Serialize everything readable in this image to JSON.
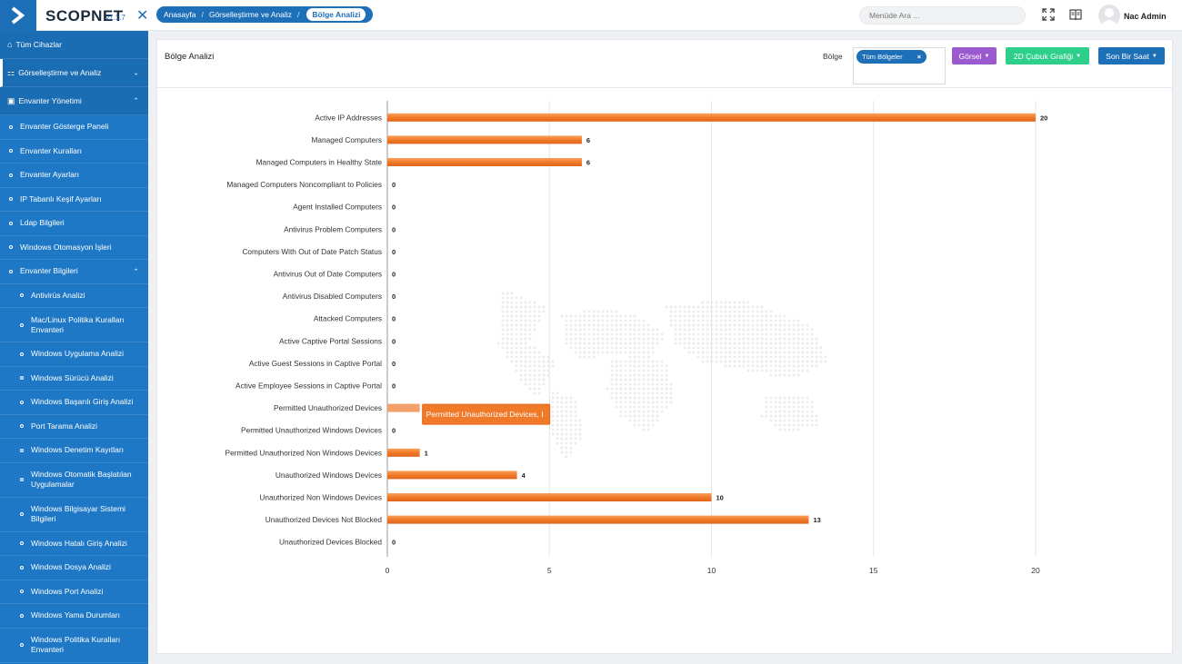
{
  "app": {
    "brand": "SCOPNET",
    "version": "v7.1.7"
  },
  "topbar": {
    "breadcrumb": [
      "Anasayfa",
      "Görselleştirme ve Analiz",
      "Bölge Analizi"
    ],
    "search_placeholder": "Menüde Ara ...",
    "user_name": "Nac Admin"
  },
  "sidebar": {
    "items": [
      {
        "label": "Tüm Cihazlar",
        "level": 0
      },
      {
        "label": "Görselleştirme ve Analiz",
        "level": 0
      },
      {
        "label": "Envanter Yönetimi",
        "level": 0
      },
      {
        "label": "Envanter Gösterge Paneli",
        "level": 1
      },
      {
        "label": "Envanter Kuralları",
        "level": 1
      },
      {
        "label": "Envanter Ayarları",
        "level": 1
      },
      {
        "label": "IP Tabanlı Keşif Ayarları",
        "level": 1
      },
      {
        "label": "Ldap Bilgileri",
        "level": 1
      },
      {
        "label": "Windows Otomasyon İşleri",
        "level": 1
      },
      {
        "label": "Envanter Bilgileri",
        "level": 1
      },
      {
        "label": "Antivirüs Analizi",
        "level": 2
      },
      {
        "label": "Mac/Linux Politika Kuralları Envanteri",
        "level": 2
      },
      {
        "label": "Windows Uygulama Analizi",
        "level": 2
      },
      {
        "label": "Windows Sürücü Analizi",
        "level": 2
      },
      {
        "label": "Windows Başarılı Giriş Analizi",
        "level": 2
      },
      {
        "label": "Port Tarama Analizi",
        "level": 2
      },
      {
        "label": "Windows Denetim Kayıtları",
        "level": 2
      },
      {
        "label": "Windows Otomatik Başlatılan Uygulamalar",
        "level": 2
      },
      {
        "label": "Windows Bilgisayar Sistemi Bilgileri",
        "level": 2
      },
      {
        "label": "Windows Hatalı Giriş Analizi",
        "level": 2
      },
      {
        "label": "Windows Dosya Analizi",
        "level": 2
      },
      {
        "label": "Windows Port Analizi",
        "level": 2
      },
      {
        "label": "Windows Yama Durumları",
        "level": 2
      },
      {
        "label": "Windows Politika Kuralları Envanteri",
        "level": 2
      }
    ]
  },
  "panel": {
    "title": "Bölge Analizi",
    "region_label": "Bölge",
    "region_tag": "Tüm Bölgeler",
    "buttons": {
      "visual": "Görsel",
      "chart_type": "2D Çubuk Grafiği",
      "time_range": "Son Bir Saat"
    }
  },
  "tooltip": {
    "text": "Permitted Unauthorized Devices, I"
  },
  "colors": {
    "bar": "#f07a2a",
    "bar_highlight": "#f4a06a",
    "sidebar": "#1e78c6",
    "accent": "#1d6fb8"
  },
  "chart_data": {
    "type": "bar",
    "orientation": "horizontal",
    "categories": [
      "Active IP Addresses",
      "Managed Computers",
      "Managed Computers in Healthy State",
      "Managed Computers Noncompliant to Policies",
      "Agent Installed Computers",
      "Antivirus Problem Computers",
      "Computers With Out of Date Patch Status",
      "Antivirus Out of Date Computers",
      "Antivirus Disabled Computers",
      "Attacked Computers",
      "Active Captive Portal Sessions",
      "Active Guest Sessions in Captive Portal",
      "Active Employee Sessions in Captive Portal",
      "Permitted Unauthorized Devices",
      "Permitted Unauthorized Windows Devices",
      "Permitted Unauthorized Non Windows Devices",
      "Unauthorized Windows Devices",
      "Unauthorized Non Windows Devices",
      "Unauthorized Devices Not Blocked",
      "Unauthorized Devices Blocked"
    ],
    "values": [
      20,
      6,
      6,
      0,
      0,
      0,
      0,
      0,
      0,
      0,
      0,
      0,
      0,
      1,
      0,
      1,
      4,
      10,
      13,
      0
    ],
    "value_labels_shown": [
      true,
      true,
      true,
      true,
      true,
      true,
      true,
      true,
      true,
      true,
      true,
      true,
      true,
      false,
      true,
      true,
      true,
      true,
      true,
      true
    ],
    "highlighted_index": 13,
    "xticks": [
      "0",
      "5",
      "10",
      "15",
      "20"
    ],
    "xlim": [
      0,
      20
    ],
    "grid": true,
    "title": "",
    "xlabel": "",
    "ylabel": ""
  }
}
